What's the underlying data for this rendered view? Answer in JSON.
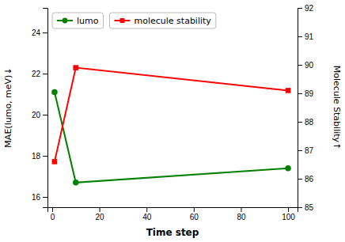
{
  "chart_data": {
    "type": "line",
    "xlabel": "Time step",
    "ylabel": "MAE(lumo, meV)↓",
    "y2label": "Molecule Stability↑",
    "x": [
      1,
      10,
      100
    ],
    "series": [
      {
        "name": "lumo",
        "color": "#008000",
        "marker": "circle",
        "values": [
          21.1,
          16.7,
          17.4
        ]
      },
      {
        "name": "molecule stability",
        "color": "#ff0000",
        "marker": "square",
        "axis": "y2",
        "values": [
          86.6,
          89.9,
          89.1
        ]
      }
    ],
    "xlim": [
      -2,
      104
    ],
    "xticks": [
      0,
      20,
      40,
      60,
      80,
      100
    ],
    "ylim": [
      15.5,
      25.2
    ],
    "yticks": [
      16,
      18,
      20,
      22,
      24
    ],
    "y2lim": [
      85,
      92
    ],
    "y2ticks": [
      85,
      86,
      87,
      88,
      89,
      90,
      91,
      92
    ],
    "grid": false,
    "legend": "upper left"
  }
}
